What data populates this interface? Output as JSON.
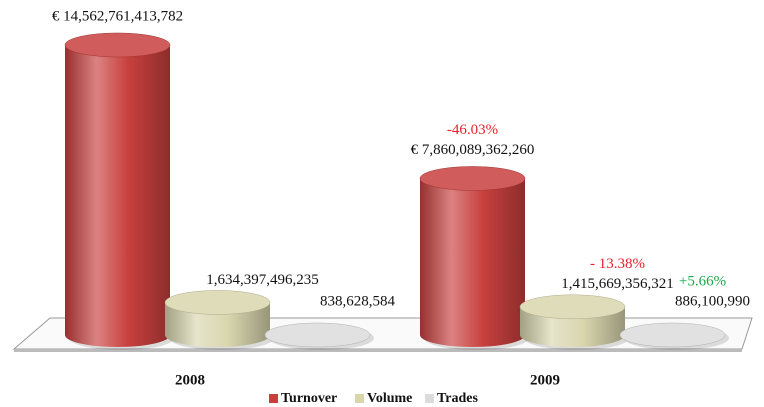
{
  "chart_data": {
    "type": "cylinder-bar",
    "categories": [
      "2008",
      "2009"
    ],
    "series": [
      {
        "name": "Turnover",
        "color": "#c8403e",
        "values": [
          14562761413782,
          7860089362260
        ],
        "value_labels": [
          "€ 14,562,761,413,782",
          "€ 7,860,089,362,260"
        ]
      },
      {
        "name": "Volume",
        "color": "#d9d6ae",
        "values": [
          1634397496235,
          1415669356321
        ],
        "value_labels": [
          "1,634,397,496,235",
          "1,415,669,356,321"
        ]
      },
      {
        "name": "Trades",
        "color": "#dcdcdc",
        "values": [
          838628584,
          886100990
        ],
        "value_labels": [
          "838,628,584",
          "886,100,990"
        ]
      }
    ],
    "annotations": [
      {
        "text": "-46.03%",
        "series": "Turnover",
        "category": "2009",
        "color": "#e8202a"
      },
      {
        "text": "- 13.38%",
        "series": "Volume",
        "category": "2009",
        "color": "#e8202a"
      },
      {
        "text": "+5.66%",
        "series": "Trades",
        "category": "2009",
        "color": "#1aa84a"
      }
    ],
    "legend": "bottom"
  }
}
